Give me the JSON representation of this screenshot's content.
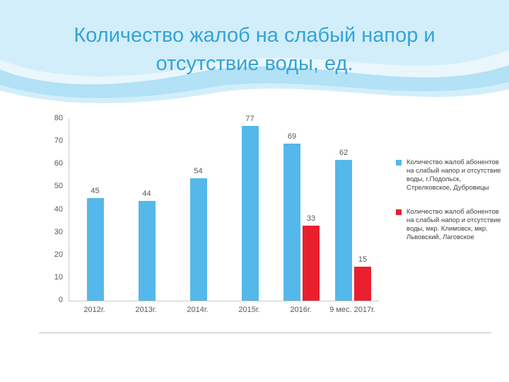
{
  "slide": {
    "title": "Количество жалоб на слабый напор и отсутствие воды, ед."
  },
  "chart_data": {
    "type": "bar",
    "title": "Количество жалоб на слабый напор и отсутствие воды, ед.",
    "categories": [
      "2012г.",
      "2013г.",
      "2014г.",
      "2015г.",
      "2016г.",
      "9 мес. 2017г."
    ],
    "series": [
      {
        "name": "Количество жалоб абонентов на слабый напор и отсутствие воды, г.Подольск, Стрелковское, Дубровицы",
        "color": "#55b8ea",
        "values": [
          45,
          44,
          54,
          77,
          69,
          62
        ]
      },
      {
        "name": "Количество жалоб абонентов на слабый напор и отсутствие воды, мкр. Климовск, мкр. Львовский, Лаговское",
        "color": "#ea1f2e",
        "values": [
          null,
          null,
          null,
          null,
          33,
          15
        ]
      }
    ],
    "xlabel": "",
    "ylabel": "",
    "ylim": [
      0,
      80
    ],
    "ytick_step": 10,
    "grid": false,
    "data_labels": true,
    "legend_position": "right"
  }
}
